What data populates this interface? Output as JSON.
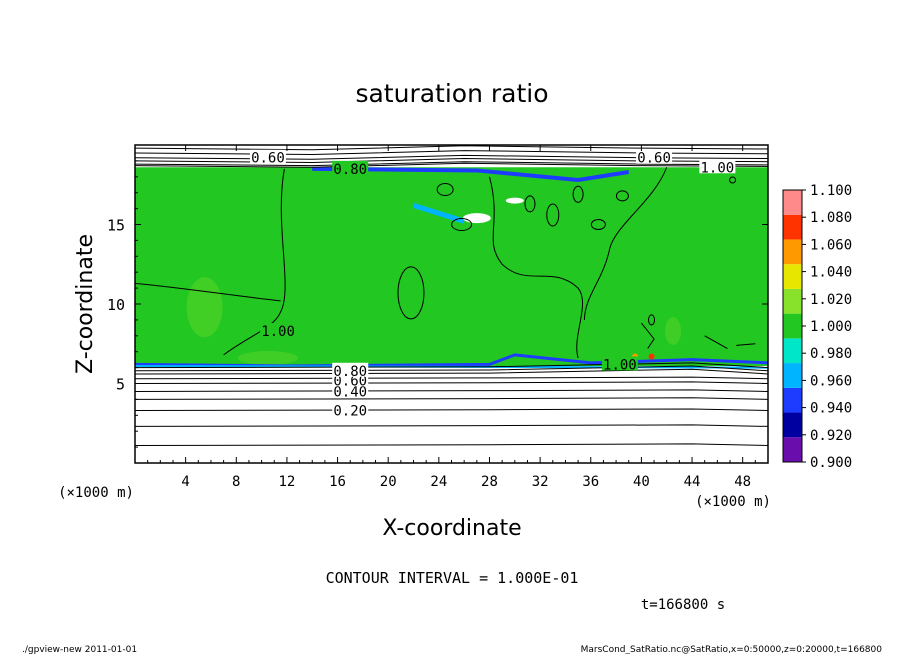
{
  "chart_data": {
    "type": "heatmap",
    "title": "saturation ratio",
    "xlabel": "X-coordinate",
    "ylabel": "Z-coordinate",
    "x_unit": "(×1000 m)",
    "y_unit": "(×1000 m)",
    "xlim": [
      0,
      50
    ],
    "ylim": [
      0,
      20
    ],
    "x_ticks": [
      4,
      8,
      12,
      16,
      20,
      24,
      28,
      32,
      36,
      40,
      44,
      48
    ],
    "y_ticks": [
      5,
      10,
      15
    ],
    "colorbar": {
      "levels": [
        "0.900",
        "0.920",
        "0.940",
        "0.960",
        "0.980",
        "1.000",
        "1.020",
        "1.040",
        "1.060",
        "1.080",
        "1.100"
      ],
      "colors": [
        "#6a0dad",
        "#0000a0",
        "#1e3cff",
        "#00b4ff",
        "#00e6c8",
        "#22c722",
        "#88e12a",
        "#e6e600",
        "#ff9900",
        "#ff3300",
        "#ff8a8a"
      ]
    },
    "regions": [
      {
        "description_value": 1.0,
        "z_range": [
          6.1,
          18.6
        ]
      }
    ],
    "contour_labels": [
      {
        "text": "0.20",
        "x": 17.0,
        "z": 3.3
      },
      {
        "text": "0.40",
        "x": 17.0,
        "z": 4.5
      },
      {
        "text": "0.60",
        "x": 17.0,
        "z": 5.2
      },
      {
        "text": "0.80",
        "x": 17.0,
        "z": 5.8
      },
      {
        "text": "1.00",
        "x": 11.3,
        "z": 8.3
      },
      {
        "text": "1.00",
        "x": 38.3,
        "z": 6.2
      },
      {
        "text": "0.80",
        "x": 17.0,
        "z": 18.5
      },
      {
        "text": "0.60",
        "x": 10.5,
        "z": 19.2
      },
      {
        "text": "0.60",
        "x": 41.0,
        "z": 19.2
      },
      {
        "text": "1.00",
        "x": 46.0,
        "z": 18.6
      }
    ],
    "contour_interval_text": "CONTOUR INTERVAL = 1.000E-01",
    "time_text": "t=166800 s"
  },
  "footer": {
    "left": "./gpview-new  2011-01-01",
    "right": "MarsCond_SatRatio.nc@SatRatio,x=0:50000,z=0:20000,t=166800"
  }
}
